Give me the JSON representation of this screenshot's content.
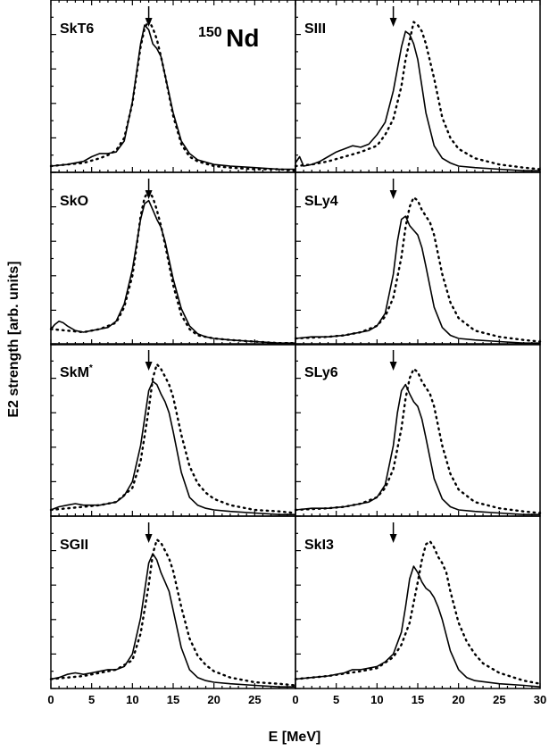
{
  "figure": {
    "annotation_mass": "150",
    "annotation_element": "Nd",
    "xlabel": "E [MeV]",
    "ylabel": "E2 strength [arb. units]"
  },
  "chart_data": [
    {
      "type": "line",
      "label": "SkT6",
      "marker_x": 12,
      "xlim": [
        0,
        30
      ],
      "ylim": [
        0,
        1.1
      ],
      "series": [
        {
          "style": "solid",
          "x": [
            0,
            2,
            4,
            5,
            6,
            7,
            8,
            9,
            10,
            11,
            11.5,
            12,
            12.5,
            13,
            13.5,
            14,
            15,
            16,
            17,
            18,
            20,
            22,
            25,
            28,
            30
          ],
          "values": [
            0.04,
            0.05,
            0.07,
            0.1,
            0.12,
            0.12,
            0.13,
            0.2,
            0.45,
            0.82,
            0.94,
            0.91,
            0.82,
            0.79,
            0.74,
            0.62,
            0.38,
            0.2,
            0.12,
            0.08,
            0.05,
            0.04,
            0.03,
            0.02,
            0.02
          ]
        },
        {
          "style": "dotted",
          "x": [
            0,
            2,
            4,
            6,
            7,
            8,
            9,
            10,
            10.5,
            11,
            11.5,
            12,
            12.5,
            13,
            13.5,
            14,
            15,
            16,
            17,
            18,
            20,
            22,
            25,
            28,
            30
          ],
          "values": [
            0.04,
            0.05,
            0.06,
            0.09,
            0.11,
            0.14,
            0.22,
            0.44,
            0.62,
            0.8,
            0.92,
            0.97,
            0.92,
            0.85,
            0.74,
            0.62,
            0.36,
            0.18,
            0.1,
            0.07,
            0.04,
            0.03,
            0.02,
            0.02,
            0.01
          ]
        }
      ]
    },
    {
      "type": "line",
      "label": "SIII",
      "marker_x": 12,
      "xlim": [
        0,
        30
      ],
      "ylim": [
        0,
        1.1
      ],
      "series": [
        {
          "style": "solid",
          "x": [
            0,
            0.5,
            1,
            2,
            3,
            4,
            5,
            6,
            7,
            8,
            9,
            10,
            11,
            12,
            13,
            13.5,
            14,
            14.5,
            15,
            15.5,
            16,
            17,
            18,
            19,
            20,
            22,
            25,
            28,
            30
          ],
          "values": [
            0.06,
            0.1,
            0.04,
            0.05,
            0.07,
            0.1,
            0.13,
            0.15,
            0.17,
            0.16,
            0.18,
            0.24,
            0.32,
            0.52,
            0.8,
            0.9,
            0.88,
            0.82,
            0.72,
            0.55,
            0.38,
            0.17,
            0.09,
            0.06,
            0.04,
            0.03,
            0.02,
            0.01,
            0.01
          ]
        },
        {
          "style": "dotted",
          "x": [
            0,
            2,
            4,
            6,
            8,
            10,
            11,
            12,
            13,
            13.5,
            14,
            14.5,
            15,
            15.5,
            16,
            17,
            18,
            19,
            20,
            22,
            25,
            28,
            30
          ],
          "values": [
            0.04,
            0.05,
            0.07,
            0.1,
            0.13,
            0.17,
            0.24,
            0.34,
            0.55,
            0.72,
            0.84,
            0.96,
            0.94,
            0.9,
            0.82,
            0.6,
            0.35,
            0.22,
            0.15,
            0.09,
            0.05,
            0.03,
            0.02
          ]
        }
      ]
    },
    {
      "type": "line",
      "label": "SkO",
      "marker_x": 12,
      "xlim": [
        0,
        30
      ],
      "ylim": [
        0,
        1.1
      ],
      "series": [
        {
          "style": "solid",
          "x": [
            0,
            0.5,
            1,
            1.5,
            2,
            3,
            4,
            5,
            6,
            7,
            8,
            9,
            10,
            11,
            11.5,
            12,
            12.5,
            13,
            13.5,
            14,
            15,
            16,
            17,
            18,
            19,
            20,
            22,
            25,
            28,
            30
          ],
          "values": [
            0.1,
            0.13,
            0.15,
            0.14,
            0.12,
            0.09,
            0.08,
            0.09,
            0.1,
            0.11,
            0.15,
            0.26,
            0.48,
            0.8,
            0.9,
            0.92,
            0.86,
            0.8,
            0.75,
            0.66,
            0.42,
            0.23,
            0.12,
            0.07,
            0.05,
            0.04,
            0.03,
            0.02,
            0.01,
            0.01
          ]
        },
        {
          "style": "dotted",
          "x": [
            0,
            4,
            6,
            8,
            9,
            10,
            10.5,
            11,
            11.5,
            12,
            12.5,
            13,
            13.5,
            14,
            15,
            16,
            17,
            18,
            20,
            22,
            25,
            28,
            30
          ],
          "values": [
            0.1,
            0.08,
            0.1,
            0.14,
            0.24,
            0.44,
            0.62,
            0.82,
            0.94,
            0.98,
            0.94,
            0.86,
            0.76,
            0.64,
            0.38,
            0.19,
            0.1,
            0.06,
            0.04,
            0.03,
            0.02,
            0.01,
            0.01
          ]
        }
      ]
    },
    {
      "type": "line",
      "label": "SLy4",
      "marker_x": 12,
      "xlim": [
        0,
        30
      ],
      "ylim": [
        0,
        1.1
      ],
      "series": [
        {
          "style": "solid",
          "x": [
            0,
            2,
            4,
            6,
            7,
            8,
            9,
            10,
            11,
            12,
            12.5,
            13,
            13.5,
            14,
            14.5,
            15,
            15.5,
            16,
            17,
            18,
            19,
            20,
            22,
            25,
            28,
            30
          ],
          "values": [
            0.04,
            0.05,
            0.05,
            0.06,
            0.07,
            0.08,
            0.09,
            0.12,
            0.2,
            0.45,
            0.66,
            0.8,
            0.82,
            0.76,
            0.73,
            0.7,
            0.62,
            0.5,
            0.24,
            0.11,
            0.06,
            0.04,
            0.03,
            0.02,
            0.01,
            0.01
          ]
        },
        {
          "style": "dotted",
          "x": [
            0,
            4,
            6,
            8,
            10,
            11,
            12,
            13,
            13.5,
            14,
            14.5,
            15,
            15.5,
            16,
            16.5,
            17,
            18,
            19,
            20,
            22,
            25,
            28,
            30
          ],
          "values": [
            0.04,
            0.05,
            0.06,
            0.08,
            0.12,
            0.18,
            0.3,
            0.56,
            0.75,
            0.88,
            0.94,
            0.92,
            0.86,
            0.82,
            0.78,
            0.7,
            0.45,
            0.27,
            0.17,
            0.09,
            0.05,
            0.03,
            0.02
          ]
        }
      ]
    },
    {
      "type": "line",
      "label": "SkM*",
      "marker_x": 12,
      "xlim": [
        0,
        30
      ],
      "ylim": [
        0,
        1.1
      ],
      "series": [
        {
          "style": "solid",
          "x": [
            0,
            1,
            2,
            3,
            4,
            5,
            6,
            7,
            8,
            9,
            10,
            11,
            12,
            12.5,
            13,
            13.5,
            14,
            14.5,
            15,
            16,
            17,
            18,
            19,
            20,
            22,
            25,
            28,
            30
          ],
          "values": [
            0.04,
            0.06,
            0.07,
            0.08,
            0.07,
            0.07,
            0.07,
            0.08,
            0.09,
            0.13,
            0.22,
            0.45,
            0.8,
            0.86,
            0.84,
            0.78,
            0.73,
            0.66,
            0.54,
            0.28,
            0.12,
            0.07,
            0.05,
            0.04,
            0.03,
            0.02,
            0.01,
            0.01
          ]
        },
        {
          "style": "dotted",
          "x": [
            0,
            4,
            6,
            8,
            10,
            11,
            12,
            12.5,
            13,
            13.5,
            14,
            14.5,
            15,
            16,
            17,
            18,
            19,
            20,
            22,
            25,
            28,
            30
          ],
          "values": [
            0.04,
            0.06,
            0.07,
            0.09,
            0.18,
            0.35,
            0.68,
            0.88,
            0.97,
            0.94,
            0.89,
            0.84,
            0.76,
            0.52,
            0.32,
            0.21,
            0.15,
            0.11,
            0.07,
            0.04,
            0.03,
            0.02
          ]
        }
      ]
    },
    {
      "type": "line",
      "label": "SLy6",
      "marker_x": 12,
      "xlim": [
        0,
        30
      ],
      "ylim": [
        0,
        1.1
      ],
      "series": [
        {
          "style": "solid",
          "x": [
            0,
            2,
            4,
            6,
            8,
            9,
            10,
            11,
            12,
            12.5,
            13,
            13.5,
            14,
            14.5,
            15,
            15.5,
            16,
            17,
            18,
            19,
            20,
            22,
            25,
            28,
            30
          ],
          "values": [
            0.04,
            0.05,
            0.05,
            0.06,
            0.08,
            0.09,
            0.12,
            0.2,
            0.45,
            0.66,
            0.8,
            0.84,
            0.78,
            0.73,
            0.7,
            0.62,
            0.5,
            0.24,
            0.11,
            0.06,
            0.04,
            0.03,
            0.02,
            0.01,
            0.01
          ]
        },
        {
          "style": "dotted",
          "x": [
            0,
            4,
            6,
            8,
            10,
            11,
            12,
            13,
            13.5,
            14,
            14.5,
            15,
            15.5,
            16,
            16.5,
            17,
            18,
            19,
            20,
            22,
            25,
            28,
            30
          ],
          "values": [
            0.04,
            0.05,
            0.06,
            0.08,
            0.12,
            0.18,
            0.3,
            0.56,
            0.75,
            0.88,
            0.94,
            0.92,
            0.86,
            0.82,
            0.78,
            0.7,
            0.45,
            0.27,
            0.17,
            0.09,
            0.05,
            0.03,
            0.02
          ]
        }
      ]
    },
    {
      "type": "line",
      "label": "SGII",
      "marker_x": 12,
      "xlim": [
        0,
        30
      ],
      "ylim": [
        0,
        1.1
      ],
      "series": [
        {
          "style": "solid",
          "x": [
            0,
            1,
            2,
            3,
            4,
            5,
            6,
            7,
            8,
            9,
            10,
            11,
            12,
            12.5,
            13,
            13.5,
            14,
            14.5,
            15,
            16,
            17,
            18,
            19,
            20,
            22,
            25,
            28,
            30
          ],
          "values": [
            0.06,
            0.07,
            0.09,
            0.1,
            0.09,
            0.1,
            0.11,
            0.12,
            0.12,
            0.14,
            0.22,
            0.45,
            0.8,
            0.86,
            0.82,
            0.74,
            0.68,
            0.62,
            0.5,
            0.26,
            0.12,
            0.07,
            0.05,
            0.04,
            0.03,
            0.02,
            0.01,
            0.01
          ]
        },
        {
          "style": "dotted",
          "x": [
            0,
            4,
            6,
            8,
            10,
            11,
            12,
            12.5,
            13,
            13.5,
            14,
            14.5,
            15,
            16,
            17,
            18,
            19,
            20,
            22,
            25,
            28,
            30
          ],
          "values": [
            0.06,
            0.08,
            0.1,
            0.12,
            0.18,
            0.35,
            0.66,
            0.86,
            0.95,
            0.93,
            0.88,
            0.83,
            0.75,
            0.52,
            0.32,
            0.21,
            0.15,
            0.11,
            0.07,
            0.04,
            0.03,
            0.02
          ]
        }
      ]
    },
    {
      "type": "line",
      "label": "SkI3",
      "marker_x": 12,
      "xlim": [
        0,
        30
      ],
      "ylim": [
        0,
        1.1
      ],
      "series": [
        {
          "style": "solid",
          "x": [
            0,
            2,
            4,
            6,
            7,
            8,
            9,
            10,
            11,
            12,
            13,
            13.5,
            14,
            14.5,
            15,
            15.5,
            16,
            16.5,
            17,
            17.5,
            18,
            19,
            20,
            21,
            22,
            25,
            28,
            30
          ],
          "values": [
            0.06,
            0.07,
            0.08,
            0.1,
            0.12,
            0.12,
            0.13,
            0.14,
            0.17,
            0.22,
            0.36,
            0.52,
            0.7,
            0.78,
            0.74,
            0.68,
            0.64,
            0.62,
            0.58,
            0.52,
            0.44,
            0.24,
            0.12,
            0.07,
            0.05,
            0.03,
            0.02,
            0.01
          ]
        },
        {
          "style": "dotted",
          "x": [
            0,
            4,
            8,
            10,
            12,
            13,
            14,
            15,
            15.5,
            16,
            16.5,
            17,
            17.5,
            18,
            18.5,
            19,
            20,
            21,
            22,
            23,
            25,
            28,
            30
          ],
          "values": [
            0.06,
            0.08,
            0.11,
            0.13,
            0.2,
            0.28,
            0.42,
            0.68,
            0.82,
            0.92,
            0.94,
            0.9,
            0.84,
            0.8,
            0.74,
            0.62,
            0.42,
            0.3,
            0.22,
            0.16,
            0.1,
            0.05,
            0.03
          ]
        }
      ]
    }
  ]
}
